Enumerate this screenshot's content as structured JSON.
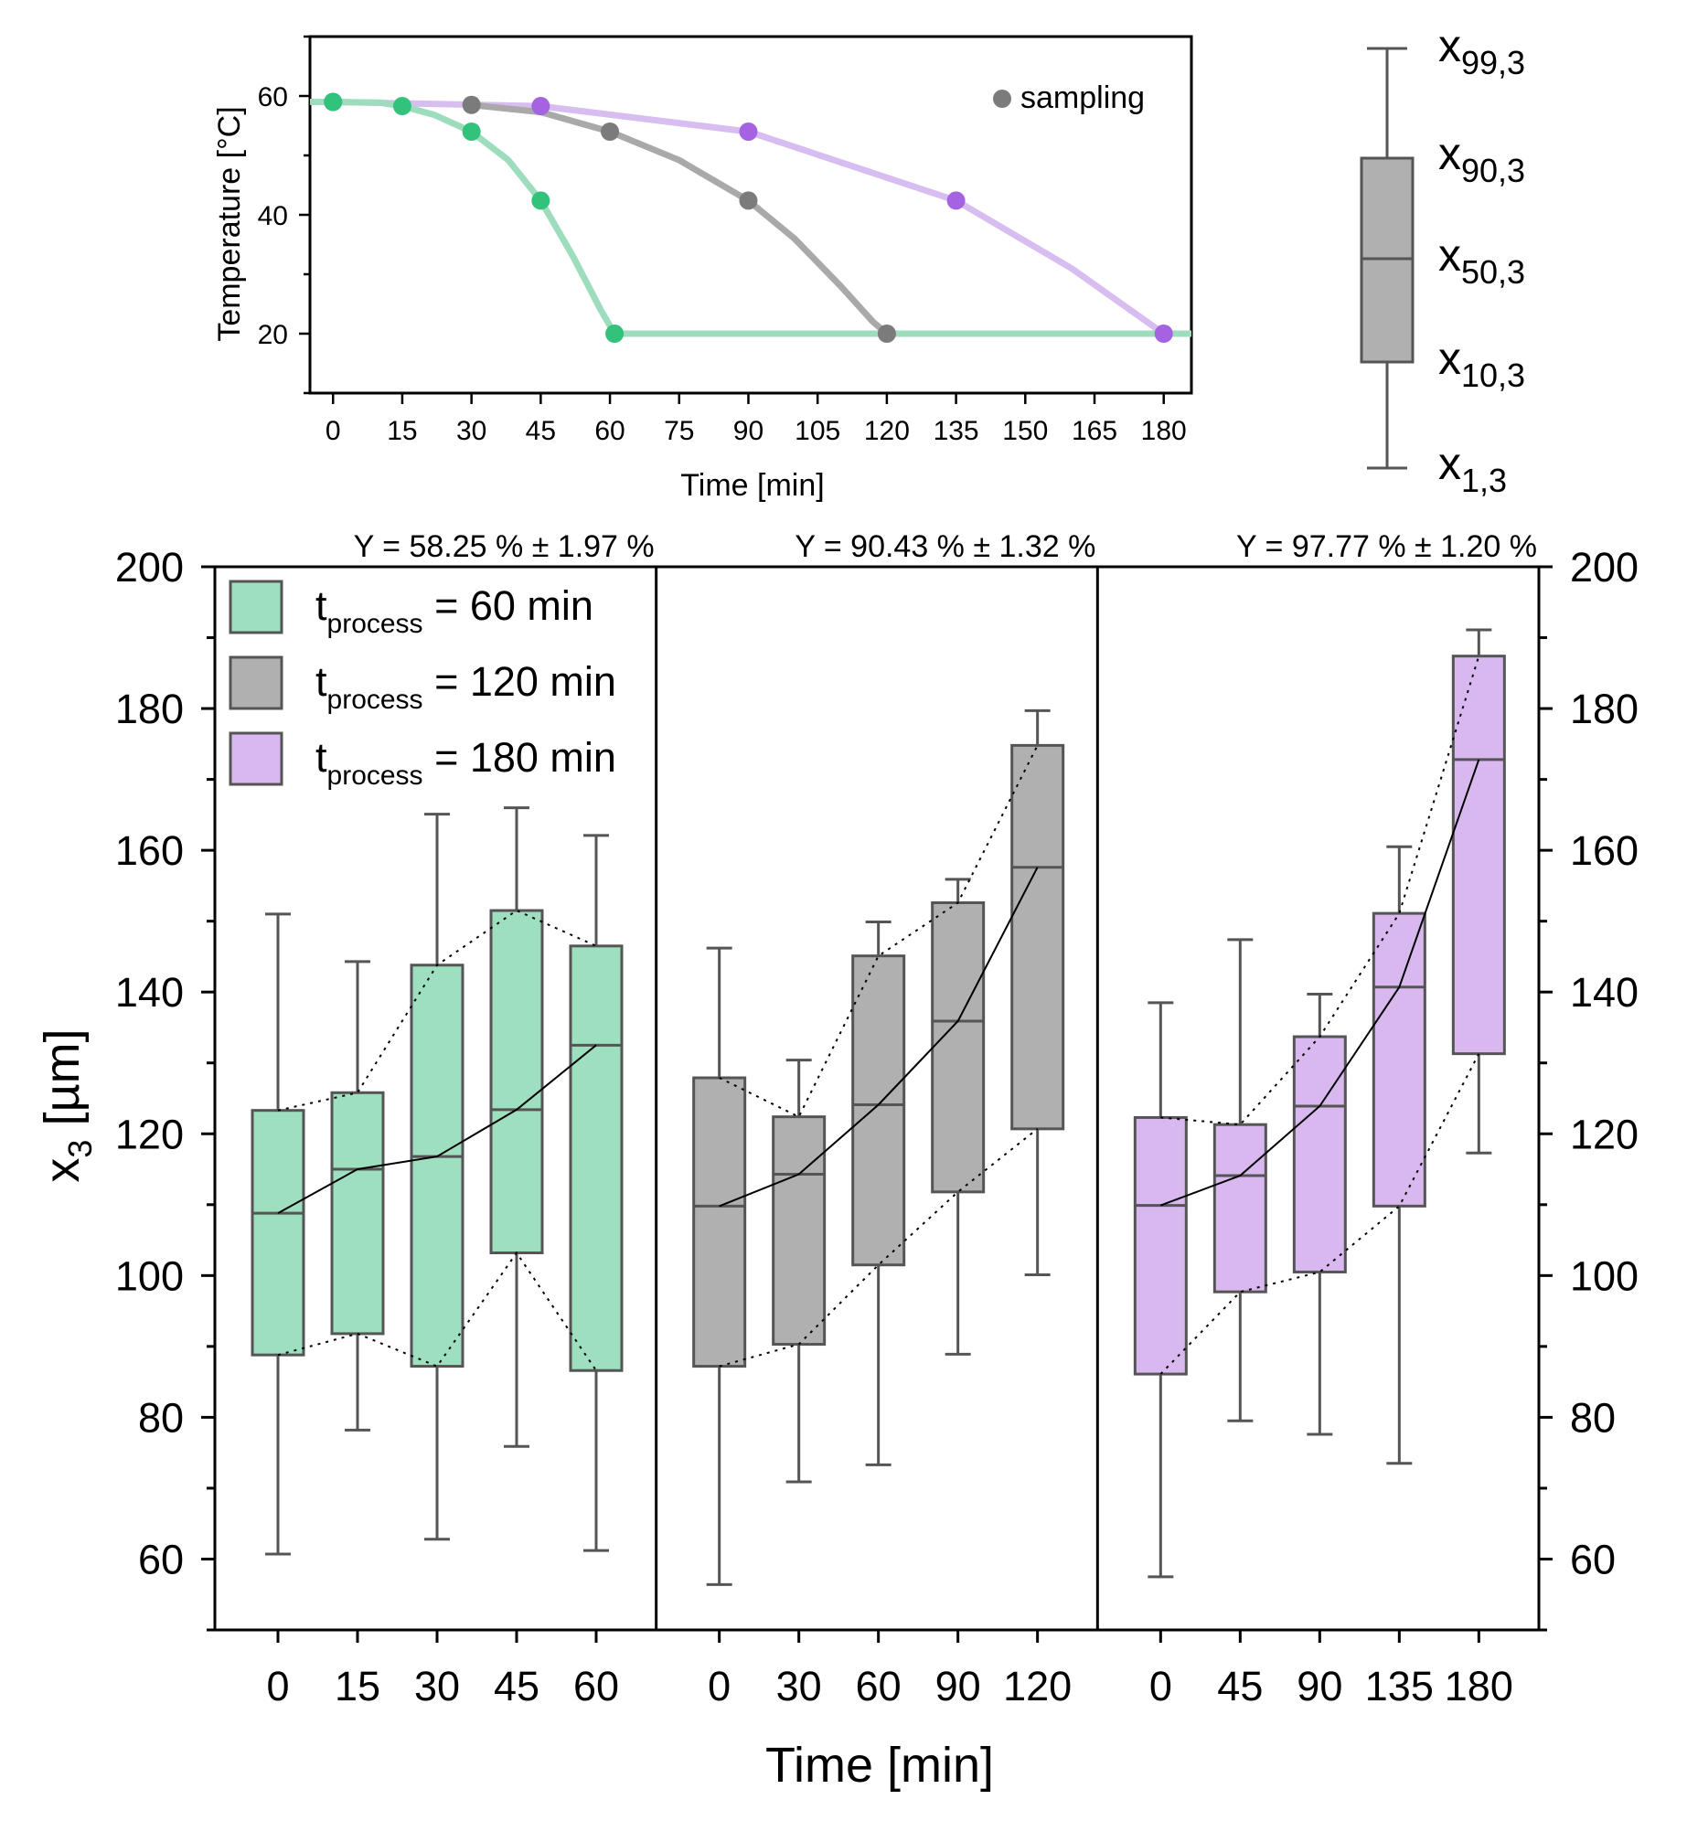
{
  "chart_data": [
    {
      "type": "line",
      "title": "",
      "xlabel": "Time [min]",
      "ylabel": "Temperature [°C]",
      "xlim": [
        -5,
        186
      ],
      "ylim": [
        10,
        70
      ],
      "xticks": [
        "0",
        "15",
        "30",
        "45",
        "60",
        "75",
        "90",
        "105",
        "120",
        "135",
        "150",
        "165",
        "180"
      ],
      "yticks": [
        "20",
        "40",
        "60"
      ],
      "legend": "sampling",
      "series": [
        {
          "name": "t_process = 60 min",
          "color": "#9ddcbc",
          "markerColor": "#33c27b",
          "curve": [
            [
              -5,
              59
            ],
            [
              0,
              59
            ],
            [
              10,
              58.9
            ],
            [
              15,
              58.3
            ],
            [
              22,
              56.8
            ],
            [
              30,
              54
            ],
            [
              38,
              49.2
            ],
            [
              45,
              42.4
            ],
            [
              52,
              33
            ],
            [
              58,
              24
            ],
            [
              61,
              20
            ],
            [
              186,
              20
            ]
          ],
          "samples": [
            [
              0,
              59
            ],
            [
              15,
              58.3
            ],
            [
              30,
              54
            ],
            [
              45,
              42.4
            ],
            [
              61,
              20
            ]
          ]
        },
        {
          "name": "t_process = 120 min",
          "color": "#a9a9a9",
          "markerColor": "#7b7b7b",
          "curve": [
            [
              30,
              58.5
            ],
            [
              45,
              57.3
            ],
            [
              60,
              54
            ],
            [
              75,
              49.2
            ],
            [
              90,
              42.4
            ],
            [
              100,
              36
            ],
            [
              110,
              28
            ],
            [
              117,
              22
            ],
            [
              120,
              20
            ],
            [
              186,
              20
            ]
          ],
          "samples": [
            [
              30,
              58.5
            ],
            [
              60,
              54
            ],
            [
              90,
              42.4
            ],
            [
              120,
              20
            ]
          ]
        },
        {
          "name": "t_process = 180 min",
          "color": "#d8bdf0",
          "markerColor": "#a463e0",
          "curve": [
            [
              -5,
              59
            ],
            [
              0,
              59
            ],
            [
              45,
              58.3
            ],
            [
              90,
              54
            ],
            [
              135,
              42.4
            ],
            [
              160,
              31
            ],
            [
              180,
              20
            ],
            [
              186,
              20
            ]
          ],
          "samples": [
            [
              0,
              59
            ],
            [
              45,
              58.3
            ],
            [
              90,
              54
            ],
            [
              135,
              42.4
            ],
            [
              180,
              20
            ]
          ]
        }
      ]
    },
    {
      "type": "box",
      "xlabel": "Time [min]",
      "ylabel_main": "x",
      "ylabel_sub": "3",
      "ylabel_unit": " [µm]",
      "ylim": [
        50,
        200
      ],
      "yticks": [
        "60",
        "80",
        "100",
        "120",
        "140",
        "160",
        "180",
        "200"
      ],
      "panels": [
        {
          "annotation": "Y = 58.25 % ± 1.97 %",
          "fill": "#9ddfbe",
          "categories": [
            "0",
            "15",
            "30",
            "45",
            "60"
          ],
          "boxes": [
            {
              "x1": 60.7,
              "x10": 88.8,
              "x50": 108.8,
              "x90": 123.3,
              "x99": 151.0
            },
            {
              "x1": 78.2,
              "x10": 91.8,
              "x50": 115.0,
              "x90": 125.8,
              "x99": 144.3
            },
            {
              "x1": 62.8,
              "x10": 87.2,
              "x50": 116.8,
              "x90": 143.8,
              "x99": 165.1
            },
            {
              "x1": 75.9,
              "x10": 103.2,
              "x50": 123.4,
              "x90": 151.5,
              "x99": 166.0
            },
            {
              "x1": 61.2,
              "x10": 86.6,
              "x50": 132.5,
              "x90": 146.5,
              "x99": 162.1
            }
          ]
        },
        {
          "annotation": "Y = 90.43 % ± 1.32 %",
          "fill": "#b0b0b0",
          "categories": [
            "0",
            "30",
            "60",
            "90",
            "120"
          ],
          "boxes": [
            {
              "x1": 56.4,
              "x10": 87.2,
              "x50": 109.8,
              "x90": 127.9,
              "x99": 146.2
            },
            {
              "x1": 70.9,
              "x10": 90.3,
              "x50": 114.3,
              "x90": 122.4,
              "x99": 130.4
            },
            {
              "x1": 73.3,
              "x10": 101.5,
              "x50": 124.1,
              "x90": 145.1,
              "x99": 149.9
            },
            {
              "x1": 88.9,
              "x10": 111.8,
              "x50": 135.9,
              "x90": 152.6,
              "x99": 155.9
            },
            {
              "x1": 100.1,
              "x10": 120.7,
              "x50": 157.6,
              "x90": 174.8,
              "x99": 179.7
            }
          ]
        },
        {
          "annotation": "Y = 97.77 % ± 1.20 %",
          "fill": "#d8b8ee",
          "categories": [
            "0",
            "45",
            "90",
            "135",
            "180"
          ],
          "boxes": [
            {
              "x1": 57.5,
              "x10": 86.1,
              "x50": 109.9,
              "x90": 122.3,
              "x99": 138.5
            },
            {
              "x1": 79.5,
              "x10": 97.7,
              "x50": 114.1,
              "x90": 121.3,
              "x99": 147.4
            },
            {
              "x1": 77.6,
              "x10": 100.5,
              "x50": 123.9,
              "x90": 133.7,
              "x99": 139.7
            },
            {
              "x1": 73.5,
              "x10": 109.8,
              "x50": 140.7,
              "x90": 151.1,
              "x99": 160.5
            },
            {
              "x1": 117.3,
              "x10": 131.3,
              "x50": 172.8,
              "x90": 187.4,
              "x99": 191.1
            }
          ]
        }
      ],
      "legend": [
        {
          "pre": "t",
          "sub": "process",
          "post": " = 60 min",
          "fill": "#9ddfbe"
        },
        {
          "pre": "t",
          "sub": "process",
          "post": " = 120 min",
          "fill": "#b0b0b0"
        },
        {
          "pre": "t",
          "sub": "process",
          "post": " = 180 min",
          "fill": "#d8b8ee"
        }
      ]
    }
  ],
  "boxplot_key": {
    "labels": [
      {
        "main": "x",
        "sub": "99,3"
      },
      {
        "main": "x",
        "sub": "90,3"
      },
      {
        "main": "x",
        "sub": "50,3"
      },
      {
        "main": "x",
        "sub": "10,3"
      },
      {
        "main": "x",
        "sub": "1,3"
      }
    ]
  },
  "colors": {
    "box_edge": "#555555",
    "axis": "#000000"
  }
}
